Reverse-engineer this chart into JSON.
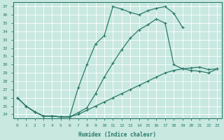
{
  "xlabel": "Humidex (Indice chaleur)",
  "xlim": [
    -0.5,
    23.5
  ],
  "ylim": [
    23.5,
    37.5
  ],
  "yticks": [
    24,
    25,
    26,
    27,
    28,
    29,
    30,
    31,
    32,
    33,
    34,
    35,
    36,
    37
  ],
  "xticks": [
    0,
    1,
    2,
    3,
    4,
    5,
    6,
    7,
    8,
    9,
    10,
    11,
    12,
    13,
    14,
    15,
    16,
    17,
    18,
    19,
    20,
    21,
    22,
    23
  ],
  "bg_color": "#c8e8e0",
  "grid_color": "#b0d0c8",
  "line_color": "#2a7a6a",
  "line1_x": [
    0,
    1,
    2,
    3,
    4,
    5,
    6,
    7,
    8,
    9,
    10,
    11,
    12,
    13,
    14,
    15,
    16,
    17,
    18,
    19
  ],
  "line1_y": [
    26.0,
    25.0,
    24.3,
    23.8,
    23.8,
    23.7,
    23.7,
    27.2,
    30.0,
    32.5,
    33.5,
    37.0,
    36.7,
    36.3,
    36.0,
    36.5,
    36.8,
    37.0,
    36.2,
    34.5
  ],
  "line2_x": [
    0,
    1,
    2,
    3,
    4,
    5,
    6,
    7,
    8,
    9,
    10,
    11,
    12,
    13,
    14,
    15,
    16,
    17,
    18,
    19,
    20,
    21,
    22,
    23
  ],
  "line2_y": [
    26.0,
    25.0,
    24.3,
    23.8,
    23.8,
    23.7,
    23.7,
    24.2,
    24.8,
    26.5,
    28.5,
    30.2,
    31.8,
    33.2,
    34.2,
    34.8,
    35.5,
    35.0,
    30.0,
    29.5,
    29.3,
    29.2,
    29.0,
    29.5
  ],
  "line3_x": [
    0,
    1,
    2,
    3,
    4,
    5,
    6,
    7,
    8,
    9,
    10,
    11,
    12,
    13,
    14,
    15,
    16,
    17,
    18,
    19,
    20,
    21,
    22,
    23
  ],
  "line3_y": [
    26.0,
    25.0,
    24.3,
    23.8,
    23.8,
    23.7,
    23.7,
    24.0,
    24.5,
    25.0,
    25.5,
    26.0,
    26.5,
    27.0,
    27.5,
    28.0,
    28.5,
    29.0,
    29.3,
    29.5,
    29.6,
    29.7,
    29.4,
    29.5
  ]
}
